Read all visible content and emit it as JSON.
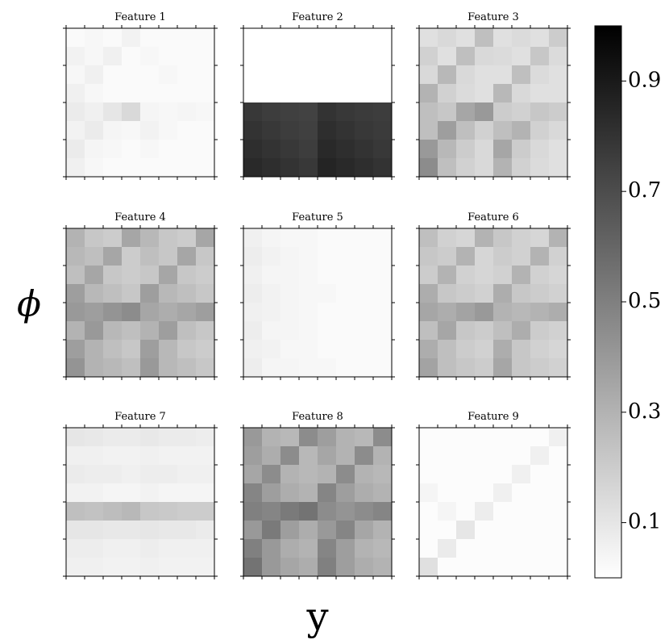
{
  "xlabel": "y",
  "ylabel": "ϕ",
  "colorbar": {
    "vlim": [
      0,
      1
    ],
    "ticks": [
      0.1,
      0.3,
      0.5,
      0.7,
      0.9
    ],
    "colormap": [
      "#ffffff",
      "#000000"
    ]
  },
  "chart_data": [
    {
      "type": "heatmap",
      "title": "Feature 1",
      "values": [
        [
          0.02,
          0.03,
          0.02,
          0.05,
          0.02,
          0.02,
          0.02,
          0.02
        ],
        [
          0.05,
          0.03,
          0.06,
          0.02,
          0.03,
          0.02,
          0.02,
          0.02
        ],
        [
          0.03,
          0.06,
          0.02,
          0.02,
          0.02,
          0.03,
          0.02,
          0.02
        ],
        [
          0.06,
          0.03,
          0.02,
          0.02,
          0.02,
          0.02,
          0.02,
          0.02
        ],
        [
          0.08,
          0.06,
          0.1,
          0.15,
          0.04,
          0.03,
          0.04,
          0.03
        ],
        [
          0.05,
          0.08,
          0.04,
          0.03,
          0.05,
          0.03,
          0.02,
          0.02
        ],
        [
          0.08,
          0.04,
          0.03,
          0.02,
          0.03,
          0.02,
          0.02,
          0.02
        ],
        [
          0.06,
          0.03,
          0.02,
          0.02,
          0.02,
          0.02,
          0.02,
          0.02
        ]
      ]
    },
    {
      "type": "heatmap",
      "title": "Feature 2",
      "values": [
        [
          0,
          0,
          0,
          0,
          0,
          0,
          0,
          0
        ],
        [
          0,
          0,
          0,
          0,
          0,
          0,
          0,
          0
        ],
        [
          0,
          0,
          0,
          0,
          0,
          0,
          0,
          0
        ],
        [
          0,
          0,
          0,
          0,
          0,
          0,
          0,
          0
        ],
        [
          0.78,
          0.76,
          0.75,
          0.74,
          0.8,
          0.78,
          0.77,
          0.76
        ],
        [
          0.8,
          0.78,
          0.76,
          0.75,
          0.82,
          0.8,
          0.78,
          0.77
        ],
        [
          0.82,
          0.8,
          0.78,
          0.76,
          0.84,
          0.82,
          0.8,
          0.78
        ],
        [
          0.84,
          0.82,
          0.8,
          0.78,
          0.86,
          0.84,
          0.82,
          0.8
        ]
      ]
    },
    {
      "type": "heatmap",
      "title": "Feature 3",
      "values": [
        [
          0.12,
          0.15,
          0.12,
          0.25,
          0.12,
          0.14,
          0.12,
          0.2
        ],
        [
          0.18,
          0.12,
          0.25,
          0.15,
          0.14,
          0.12,
          0.22,
          0.14
        ],
        [
          0.15,
          0.28,
          0.15,
          0.12,
          0.12,
          0.25,
          0.14,
          0.12
        ],
        [
          0.3,
          0.18,
          0.14,
          0.12,
          0.28,
          0.15,
          0.12,
          0.12
        ],
        [
          0.25,
          0.22,
          0.35,
          0.4,
          0.2,
          0.18,
          0.22,
          0.2
        ],
        [
          0.25,
          0.38,
          0.25,
          0.18,
          0.25,
          0.3,
          0.18,
          0.15
        ],
        [
          0.4,
          0.28,
          0.2,
          0.15,
          0.35,
          0.2,
          0.15,
          0.12
        ],
        [
          0.45,
          0.25,
          0.18,
          0.15,
          0.3,
          0.18,
          0.14,
          0.12
        ]
      ]
    },
    {
      "type": "heatmap",
      "title": "Feature 4",
      "values": [
        [
          0.3,
          0.22,
          0.2,
          0.35,
          0.28,
          0.22,
          0.2,
          0.35
        ],
        [
          0.28,
          0.25,
          0.35,
          0.2,
          0.25,
          0.22,
          0.35,
          0.22
        ],
        [
          0.25,
          0.35,
          0.22,
          0.2,
          0.22,
          0.35,
          0.22,
          0.2
        ],
        [
          0.38,
          0.28,
          0.25,
          0.22,
          0.38,
          0.28,
          0.25,
          0.22
        ],
        [
          0.4,
          0.38,
          0.42,
          0.45,
          0.35,
          0.32,
          0.35,
          0.38
        ],
        [
          0.3,
          0.4,
          0.28,
          0.25,
          0.3,
          0.38,
          0.25,
          0.22
        ],
        [
          0.38,
          0.3,
          0.25,
          0.22,
          0.38,
          0.28,
          0.22,
          0.2
        ],
        [
          0.42,
          0.3,
          0.28,
          0.25,
          0.4,
          0.28,
          0.25,
          0.22
        ]
      ]
    },
    {
      "type": "heatmap",
      "title": "Feature 5",
      "values": [
        [
          0.06,
          0.04,
          0.03,
          0.03,
          0.02,
          0.02,
          0.02,
          0.02
        ],
        [
          0.07,
          0.05,
          0.04,
          0.03,
          0.02,
          0.02,
          0.02,
          0.02
        ],
        [
          0.06,
          0.04,
          0.04,
          0.03,
          0.02,
          0.02,
          0.02,
          0.02
        ],
        [
          0.07,
          0.05,
          0.04,
          0.03,
          0.03,
          0.02,
          0.02,
          0.02
        ],
        [
          0.06,
          0.05,
          0.04,
          0.03,
          0.02,
          0.02,
          0.02,
          0.02
        ],
        [
          0.07,
          0.04,
          0.04,
          0.03,
          0.02,
          0.02,
          0.02,
          0.02
        ],
        [
          0.06,
          0.05,
          0.03,
          0.03,
          0.02,
          0.02,
          0.02,
          0.02
        ],
        [
          0.07,
          0.04,
          0.04,
          0.03,
          0.03,
          0.02,
          0.02,
          0.02
        ]
      ]
    },
    {
      "type": "heatmap",
      "title": "Feature 6",
      "values": [
        [
          0.25,
          0.18,
          0.16,
          0.3,
          0.22,
          0.18,
          0.16,
          0.3
        ],
        [
          0.22,
          0.2,
          0.3,
          0.16,
          0.2,
          0.18,
          0.3,
          0.18
        ],
        [
          0.2,
          0.3,
          0.18,
          0.16,
          0.18,
          0.3,
          0.18,
          0.16
        ],
        [
          0.32,
          0.22,
          0.2,
          0.18,
          0.32,
          0.22,
          0.2,
          0.18
        ],
        [
          0.35,
          0.32,
          0.36,
          0.4,
          0.3,
          0.28,
          0.3,
          0.32
        ],
        [
          0.25,
          0.35,
          0.22,
          0.2,
          0.25,
          0.32,
          0.2,
          0.18
        ],
        [
          0.32,
          0.25,
          0.2,
          0.18,
          0.32,
          0.22,
          0.18,
          0.16
        ],
        [
          0.36,
          0.25,
          0.22,
          0.2,
          0.35,
          0.22,
          0.2,
          0.18
        ]
      ]
    },
    {
      "type": "heatmap",
      "title": "Feature 7",
      "values": [
        [
          0.1,
          0.09,
          0.08,
          0.08,
          0.09,
          0.08,
          0.08,
          0.07
        ],
        [
          0.06,
          0.06,
          0.05,
          0.05,
          0.06,
          0.05,
          0.05,
          0.05
        ],
        [
          0.08,
          0.07,
          0.07,
          0.06,
          0.07,
          0.07,
          0.06,
          0.06
        ],
        [
          0.05,
          0.05,
          0.04,
          0.04,
          0.05,
          0.04,
          0.04,
          0.04
        ],
        [
          0.25,
          0.24,
          0.26,
          0.28,
          0.22,
          0.21,
          0.2,
          0.2
        ],
        [
          0.1,
          0.1,
          0.09,
          0.09,
          0.1,
          0.09,
          0.09,
          0.08
        ],
        [
          0.07,
          0.07,
          0.06,
          0.06,
          0.07,
          0.06,
          0.06,
          0.06
        ],
        [
          0.06,
          0.06,
          0.05,
          0.05,
          0.06,
          0.05,
          0.05,
          0.05
        ]
      ]
    },
    {
      "type": "heatmap",
      "title": "Feature 8",
      "values": [
        [
          0.4,
          0.3,
          0.28,
          0.45,
          0.38,
          0.3,
          0.28,
          0.45
        ],
        [
          0.38,
          0.32,
          0.45,
          0.28,
          0.35,
          0.3,
          0.45,
          0.3
        ],
        [
          0.35,
          0.45,
          0.3,
          0.28,
          0.3,
          0.45,
          0.3,
          0.28
        ],
        [
          0.48,
          0.38,
          0.32,
          0.3,
          0.48,
          0.38,
          0.32,
          0.3
        ],
        [
          0.5,
          0.48,
          0.52,
          0.55,
          0.45,
          0.42,
          0.45,
          0.48
        ],
        [
          0.4,
          0.52,
          0.38,
          0.32,
          0.4,
          0.48,
          0.35,
          0.3
        ],
        [
          0.5,
          0.4,
          0.32,
          0.3,
          0.48,
          0.38,
          0.3,
          0.28
        ],
        [
          0.55,
          0.4,
          0.35,
          0.32,
          0.5,
          0.38,
          0.32,
          0.3
        ]
      ]
    },
    {
      "type": "heatmap",
      "title": "Feature 9",
      "values": [
        [
          0.01,
          0.01,
          0.01,
          0.01,
          0.01,
          0.01,
          0.01,
          0.06
        ],
        [
          0.01,
          0.01,
          0.01,
          0.01,
          0.01,
          0.01,
          0.06,
          0.01
        ],
        [
          0.01,
          0.01,
          0.01,
          0.01,
          0.01,
          0.06,
          0.01,
          0.01
        ],
        [
          0.04,
          0.01,
          0.01,
          0.01,
          0.06,
          0.01,
          0.01,
          0.01
        ],
        [
          0.01,
          0.04,
          0.01,
          0.07,
          0.01,
          0.01,
          0.01,
          0.01
        ],
        [
          0.01,
          0.01,
          0.1,
          0.01,
          0.01,
          0.01,
          0.01,
          0.01
        ],
        [
          0.01,
          0.08,
          0.01,
          0.01,
          0.01,
          0.01,
          0.01,
          0.01
        ],
        [
          0.12,
          0.01,
          0.01,
          0.01,
          0.01,
          0.01,
          0.01,
          0.01
        ]
      ]
    }
  ]
}
